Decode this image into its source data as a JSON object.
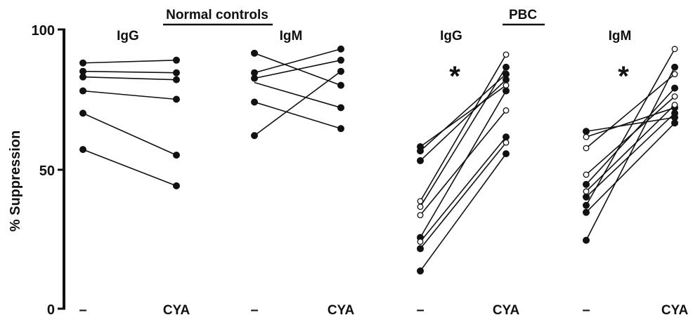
{
  "chart_data": {
    "type": "line",
    "ylabel": "% Suppression",
    "ylim": [
      0,
      100
    ],
    "yticks": [
      0,
      50,
      100
    ],
    "grid": false,
    "group_titles": [
      "Normal controls",
      "PBC"
    ],
    "significance_mark": "*",
    "panels": [
      {
        "group": "Normal controls",
        "label": "IgG",
        "x_labels": [
          "–",
          "CYA"
        ],
        "significant": false,
        "pairs": [
          {
            "before": 88,
            "after": 89,
            "fill_before": "filled",
            "fill_after": "filled"
          },
          {
            "before": 85,
            "after": 84.5,
            "fill_before": "filled",
            "fill_after": "filled"
          },
          {
            "before": 83,
            "after": 82,
            "fill_before": "filled",
            "fill_after": "filled"
          },
          {
            "before": 78,
            "after": 75,
            "fill_before": "filled",
            "fill_after": "filled"
          },
          {
            "before": 70,
            "after": 55,
            "fill_before": "filled",
            "fill_after": "filled"
          },
          {
            "before": 57,
            "after": 44,
            "fill_before": "filled",
            "fill_after": "filled"
          }
        ]
      },
      {
        "group": "Normal controls",
        "label": "IgM",
        "x_labels": [
          "–",
          "CYA"
        ],
        "significant": false,
        "pairs": [
          {
            "before": 91.5,
            "after": 80,
            "fill_before": "filled",
            "fill_after": "filled"
          },
          {
            "before": 84.5,
            "after": 93,
            "fill_before": "filled",
            "fill_after": "filled"
          },
          {
            "before": 82.5,
            "after": 89,
            "fill_before": "filled",
            "fill_after": "filled"
          },
          {
            "before": 81,
            "after": 72,
            "fill_before": "none",
            "fill_after": "filled"
          },
          {
            "before": 74,
            "after": 64.5,
            "fill_before": "filled",
            "fill_after": "filled"
          },
          {
            "before": 62,
            "after": 85,
            "fill_before": "filled",
            "fill_after": "filled"
          }
        ]
      },
      {
        "group": "PBC",
        "label": "IgG",
        "x_labels": [
          "–",
          "CYA"
        ],
        "significant": true,
        "pairs": [
          {
            "before": 58,
            "after": 80,
            "fill_before": "filled",
            "fill_after": "open"
          },
          {
            "before": 56.5,
            "after": 84,
            "fill_before": "filled",
            "fill_after": "filled"
          },
          {
            "before": 53,
            "after": 82,
            "fill_before": "filled",
            "fill_after": "filled"
          },
          {
            "before": 38.5,
            "after": 91,
            "fill_before": "open",
            "fill_after": "open"
          },
          {
            "before": 36.5,
            "after": 86.5,
            "fill_before": "open",
            "fill_after": "filled"
          },
          {
            "before": 33.5,
            "after": 71,
            "fill_before": "open",
            "fill_after": "open"
          },
          {
            "before": 25.5,
            "after": 78,
            "fill_before": "filled",
            "fill_after": "filled"
          },
          {
            "before": 24,
            "after": 61.5,
            "fill_before": "open",
            "fill_after": "filled"
          },
          {
            "before": 21.5,
            "after": 59.5,
            "fill_before": "filled",
            "fill_after": "open"
          },
          {
            "before": 13.5,
            "after": 55.5,
            "fill_before": "filled",
            "fill_after": "filled"
          }
        ]
      },
      {
        "group": "PBC",
        "label": "IgM",
        "x_labels": [
          "–",
          "CYA"
        ],
        "significant": true,
        "pairs": [
          {
            "before": 63.5,
            "after": 68.5,
            "fill_before": "filled",
            "fill_after": "filled"
          },
          {
            "before": 61.5,
            "after": 72,
            "fill_before": "open",
            "fill_after": "filled"
          },
          {
            "before": 57.5,
            "after": 84,
            "fill_before": "open",
            "fill_after": "open"
          },
          {
            "before": 48,
            "after": 76,
            "fill_before": "open",
            "fill_after": "open"
          },
          {
            "before": 44.5,
            "after": 79,
            "fill_before": "filled",
            "fill_after": "filled"
          },
          {
            "before": 42,
            "after": 73,
            "fill_before": "open",
            "fill_after": "open"
          },
          {
            "before": 40,
            "after": 70,
            "fill_before": "filled",
            "fill_after": "filled"
          },
          {
            "before": 37,
            "after": 93,
            "fill_before": "filled",
            "fill_after": "open"
          },
          {
            "before": 34.5,
            "after": 66.5,
            "fill_before": "filled",
            "fill_after": "filled"
          },
          {
            "before": 24.5,
            "after": 86.5,
            "fill_before": "filled",
            "fill_after": "filled"
          }
        ]
      }
    ]
  }
}
